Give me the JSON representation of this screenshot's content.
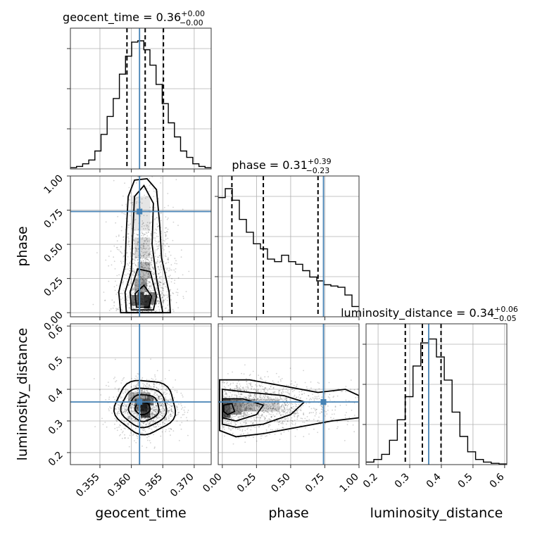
{
  "chart_data": {
    "type": "corner",
    "parameters": [
      {
        "name": "geocent_time",
        "xlabel": "geocent_time",
        "title_main": "geocent_time = 0.36",
        "title_plus": "+0.00",
        "title_minus": "−0.00",
        "range": [
          0.3503,
          0.3727
        ],
        "ticks": [
          0.355,
          0.36,
          0.365,
          0.37
        ],
        "tick_labels": [
          "0.355",
          "0.360",
          "0.365",
          "0.370"
        ],
        "truth": 0.3613,
        "quantiles": [
          0.3593,
          0.3622,
          0.3651
        ],
        "hist_relative": [
          0.01,
          0.02,
          0.04,
          0.07,
          0.14,
          0.27,
          0.41,
          0.55,
          0.74,
          0.88,
          0.99,
          1.0,
          0.93,
          0.81,
          0.66,
          0.51,
          0.36,
          0.25,
          0.14,
          0.09,
          0.04,
          0.02,
          0.01
        ]
      },
      {
        "name": "phase",
        "xlabel": "phase",
        "ylabel": "phase",
        "title_main": "phase = 0.31",
        "title_plus": "+0.39",
        "title_minus": "−0.23",
        "range": [
          -0.03,
          1.0
        ],
        "ticks": [
          0.0,
          0.25,
          0.5,
          0.75,
          1.0
        ],
        "tick_labels": [
          "0.00",
          "0.25",
          "0.50",
          "0.75",
          "1.00"
        ],
        "truth": 0.74,
        "quantiles": [
          0.07,
          0.3,
          0.7
        ],
        "hist_relative": [
          0.93,
          1.0,
          0.91,
          0.76,
          0.66,
          0.57,
          0.53,
          0.45,
          0.43,
          0.48,
          0.43,
          0.41,
          0.36,
          0.31,
          0.28,
          0.25,
          0.24,
          0.23,
          0.17,
          0.08
        ]
      },
      {
        "name": "luminosity_distance",
        "xlabel": "luminosity_distance",
        "ylabel": "luminosity_distance",
        "title_main": "luminosity_distance = 0.34",
        "title_plus": "+0.06",
        "title_minus": "−0.05",
        "range": [
          0.162,
          0.607
        ],
        "ticks": [
          0.2,
          0.3,
          0.4,
          0.5,
          0.6
        ],
        "tick_labels": [
          "0.2",
          "0.3",
          "0.4",
          "0.5",
          "0.6"
        ],
        "truth": 0.36,
        "quantiles": [
          0.286,
          0.34,
          0.399
        ],
        "hist_relative": [
          0.02,
          0.04,
          0.08,
          0.19,
          0.35,
          0.53,
          0.77,
          0.95,
          0.98,
          0.84,
          0.66,
          0.41,
          0.22,
          0.1,
          0.04,
          0.02,
          0.01,
          0.005
        ]
      }
    ],
    "grid": true,
    "truth_color": "#4682b4",
    "contour_levels": 4
  }
}
